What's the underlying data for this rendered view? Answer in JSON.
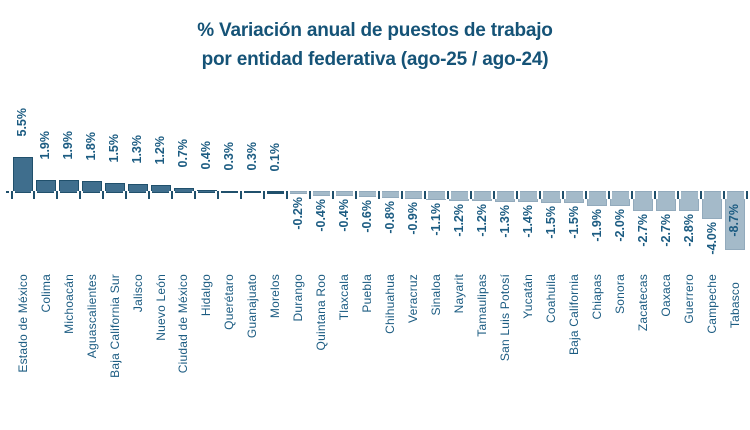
{
  "title": {
    "line1": "% Variación anual de puestos de trabajo",
    "line2": "por entidad federativa (ago-25 / ago-24)"
  },
  "chart_data": {
    "type": "bar",
    "title": "% Variación anual de puestos de trabajo por entidad federativa (ago-25 / ago-24)",
    "xlabel": "",
    "ylabel": "",
    "ylim": [
      -9,
      6
    ],
    "grid": false,
    "legend": "none",
    "tick_label_rotation": 90,
    "categories": [
      "Estado de México",
      "Colima",
      "Michoacán",
      "Aguascalientes",
      "Baja California Sur",
      "Jalisco",
      "Nuevo León",
      "Ciudad de México",
      "Hidalgo",
      "Querétaro",
      "Guanajuato",
      "Morelos",
      "Durango",
      "Quintana Roo",
      "Tlaxcala",
      "Puebla",
      "Chihuahua",
      "Veracruz",
      "Sinaloa",
      "Nayarit",
      "Tamaulipas",
      "San Luis Potosí",
      "Yucatán",
      "Coahuila",
      "Baja California",
      "Chiapas",
      "Sonora",
      "Zacatecas",
      "Oaxaca",
      "Guerrero",
      "Campeche",
      "Tabasco"
    ],
    "values": [
      5.5,
      1.9,
      1.9,
      1.8,
      1.5,
      1.3,
      1.2,
      0.7,
      0.4,
      0.3,
      0.3,
      0.1,
      -0.2,
      -0.4,
      -0.4,
      -0.6,
      -0.8,
      -0.9,
      -1.1,
      -1.2,
      -1.2,
      -1.3,
      -1.4,
      -1.5,
      -1.5,
      -1.9,
      -2.0,
      -2.7,
      -2.7,
      -2.8,
      -4.0,
      -8.7
    ],
    "value_labels": [
      "5.5%",
      "1.9%",
      "1.9%",
      "1.8%",
      "1.5%",
      "1.3%",
      "1.2%",
      "0.7%",
      "0.4%",
      "0.3%",
      "0.3%",
      "0.1%",
      "-0.2%",
      "-0.4%",
      "-0.4%",
      "-0.6%",
      "-0.8%",
      "-0.9%",
      "-1.1%",
      "-1.2%",
      "-1.2%",
      "-1.3%",
      "-1.4%",
      "-1.5%",
      "-1.5%",
      "-1.9%",
      "-2.0%",
      "-2.7%",
      "-2.7%",
      "-2.8%",
      "-4.0%",
      "-8.7%"
    ],
    "inside_label_indices": [
      31
    ],
    "colors": {
      "positive_fill": "#3f6e8d",
      "positive_border": "#20506c",
      "negative_fill": "#a4bac9",
      "negative_border": "#92aabc",
      "axis": "#20506c",
      "label_text": "#1c5c82",
      "title_text": "#155377",
      "background": "#ffffff"
    }
  }
}
